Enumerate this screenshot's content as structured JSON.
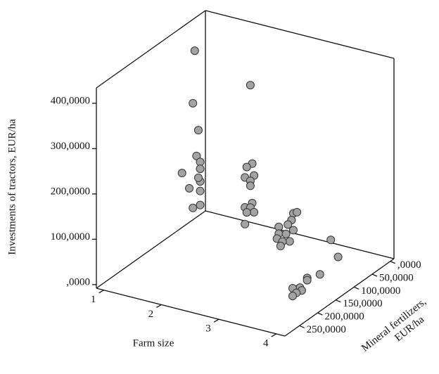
{
  "chart_data": {
    "type": "scatter3d",
    "xlabel": "Farm size",
    "ylabel": "Investments of tractors, EUR/ha",
    "zlabel": [
      "Mineral fertilizers,",
      "EUR/ha"
    ],
    "xlim": [
      0.87,
      4.15
    ],
    "xticks": [
      1,
      2,
      3,
      4
    ],
    "ylim": [
      -8000,
      434000
    ],
    "yticks": [
      {
        "value": 0,
        "label": ",0000"
      },
      {
        "value": 100000,
        "label": "100,0000"
      },
      {
        "value": 200000,
        "label": "200,0000"
      },
      {
        "value": 300000,
        "label": "300,0000"
      },
      {
        "value": 400000,
        "label": "400,0000"
      }
    ],
    "zlim": [
      -10000,
      290000
    ],
    "zticks": [
      {
        "value": 0,
        "label": ",0000"
      },
      {
        "value": 50000,
        "label": "50,0000"
      },
      {
        "value": 100000,
        "label": "100,0000"
      },
      {
        "value": 150000,
        "label": "150,0000"
      },
      {
        "value": 200000,
        "label": "200,0000"
      },
      {
        "value": 250000,
        "label": "250,0000"
      }
    ],
    "color": "#a3a3a3",
    "x": [
      1,
      1,
      1,
      1,
      1,
      1,
      1,
      1,
      1,
      1,
      1,
      1,
      1,
      2,
      2,
      2,
      2,
      2,
      2,
      2,
      2,
      2,
      2,
      2,
      2,
      2,
      3,
      3,
      3,
      3,
      3,
      3,
      3,
      3,
      3,
      3,
      3,
      3,
      4,
      4,
      4,
      4,
      4,
      4,
      4,
      4,
      4,
      4
    ],
    "z": [
      40000,
      45000,
      30000,
      35000,
      25000,
      25000,
      75000,
      25000,
      30000,
      55000,
      25000,
      45000,
      25000,
      45000,
      40000,
      55000,
      35000,
      60000,
      45000,
      45000,
      40000,
      60000,
      45000,
      35000,
      55000,
      60000,
      85000,
      75000,
      90000,
      100000,
      85000,
      125000,
      125000,
      105000,
      130000,
      95000,
      115000,
      120000,
      140000,
      120000,
      170000,
      205000,
      205000,
      225000,
      245000,
      220000,
      235000,
      245000
    ],
    "values": [
      378000,
      265000,
      197000,
      143000,
      124000,
      109000,
      128000,
      81000,
      92000,
      83000,
      60000,
      34000,
      29000,
      337000,
      161000,
      162000,
      132000,
      142000,
      126000,
      115000,
      74000,
      76000,
      67000,
      51000,
      62000,
      39000,
      109000,
      106000,
      97000,
      93000,
      72000,
      102000,
      87000,
      75000,
      79000,
      53000,
      64000,
      57000,
      114000,
      65000,
      55000,
      67000,
      62000,
      57000,
      67000,
      48000,
      51000,
      50000
    ]
  }
}
